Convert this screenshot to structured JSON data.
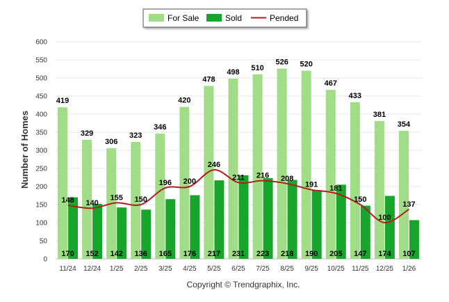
{
  "chart_data": {
    "type": "bar",
    "ylabel": "Number of Homes",
    "ylim": [
      0,
      600
    ],
    "yticks": [
      0,
      50,
      100,
      150,
      200,
      250,
      300,
      350,
      400,
      450,
      500,
      550,
      600
    ],
    "grid": true,
    "legend_position": "top-center",
    "categories": [
      "11/24",
      "12/24",
      "1/25",
      "2/25",
      "3/25",
      "4/25",
      "5/25",
      "6/25",
      "7/25",
      "8/25",
      "9/25",
      "10/25",
      "11/25",
      "12/25",
      "1/26"
    ],
    "series": [
      {
        "name": "For Sale",
        "type": "bar",
        "color": "#a0dd86",
        "values": [
          419,
          329,
          306,
          323,
          346,
          420,
          478,
          498,
          510,
          526,
          520,
          467,
          433,
          381,
          354
        ]
      },
      {
        "name": "Sold",
        "type": "bar",
        "color": "#17a52b",
        "values": [
          170,
          152,
          142,
          136,
          165,
          176,
          217,
          231,
          223,
          218,
          190,
          205,
          147,
          174,
          107
        ]
      },
      {
        "name": "Pended",
        "type": "line",
        "color": "#b41c1c",
        "values": [
          148,
          140,
          155,
          150,
          196,
          200,
          246,
          211,
          216,
          208,
          191,
          181,
          150,
          100,
          137
        ]
      }
    ],
    "footer": "Copyright © Trendgraphix, Inc."
  }
}
